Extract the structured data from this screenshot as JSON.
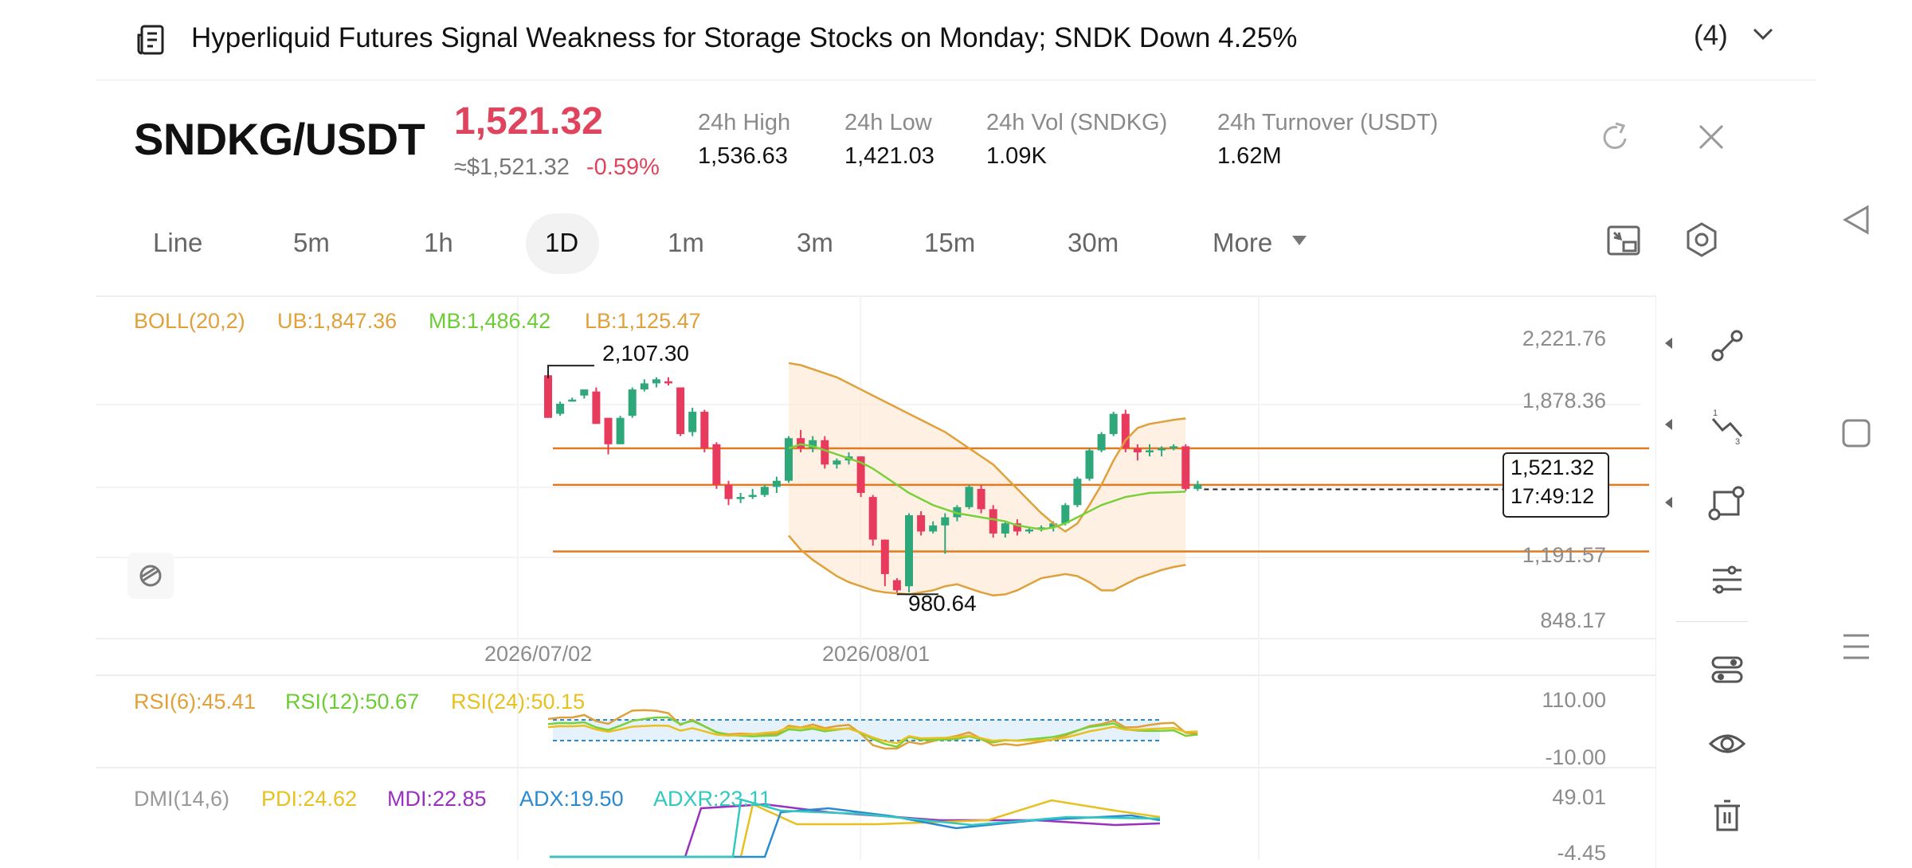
{
  "news": {
    "title": "Hyperliquid Futures Signal Weakness for Storage Stocks on Monday; SNDK Down 4.25%",
    "count": "(4)"
  },
  "header": {
    "pair": "SNDKG/USDT",
    "price": "1,521.32",
    "price_usd": "≈$1,521.32",
    "change": "-0.59%",
    "stats": [
      {
        "label": "24h   High",
        "value": "1,536.63"
      },
      {
        "label": "24h   Low",
        "value": "1,421.03"
      },
      {
        "label": "24h   Vol (SNDKG)",
        "value": "1.09K"
      },
      {
        "label": "24h   Turnover (USDT)",
        "value": "1.62M"
      }
    ]
  },
  "tabs": [
    "Line",
    "5m",
    "1h",
    "1D",
    "1m",
    "3m",
    "15m",
    "30m",
    "More"
  ],
  "selected_tab": "1D",
  "indicators": {
    "boll": {
      "name": "BOLL(20,2)",
      "ub": "UB:1,847.36",
      "mb": "MB:1,486.42",
      "lb": "LB:1,125.47"
    },
    "rsi": {
      "r6": "RSI(6):45.41",
      "r12": "RSI(12):50.67",
      "r24": "RSI(24):50.15"
    },
    "dmi": {
      "name": "DMI(14,6)",
      "pdi": "PDI:24.62",
      "mdi": "MDI:22.85",
      "adx": "ADX:19.50",
      "adxr": "ADXR:23.11"
    }
  },
  "axes": {
    "price_ticks": [
      "2,221.76",
      "1,878.36",
      "1,191.57",
      "848.17"
    ],
    "rsi_ticks": [
      "110.00",
      "-10.00"
    ],
    "dmi_ticks": [
      "49.01",
      "-4.45"
    ],
    "dates": [
      "2026/07/02",
      "2026/08/01"
    ]
  },
  "markers": {
    "high": "2,107.30",
    "low": "980.64",
    "last_price": "1,521.32",
    "countdown": "17:49:12"
  },
  "colors": {
    "up": "#2ea77a",
    "down": "#e83a5c",
    "boll_ub": "#e0a03a",
    "boll_mb": "#7ad03a",
    "hline": "#e07a20",
    "rsi6": "#e0a03a",
    "rsi12": "#7ad03a",
    "rsi24": "#e8c020",
    "pdi": "#e8c020",
    "mdi": "#9a30c0",
    "adx": "#2a8ad0",
    "adxr": "#30c8c0",
    "price_red": "#e0435d"
  },
  "chart_data": {
    "type": "candlestick",
    "candles": [
      {
        "o": 2060,
        "h": 2107.3,
        "l": 1850,
        "c": 1850
      },
      {
        "o": 1870,
        "h": 1930,
        "l": 1860,
        "c": 1920
      },
      {
        "o": 1930,
        "h": 1950,
        "l": 1930,
        "c": 1940
      },
      {
        "o": 1960,
        "h": 1990,
        "l": 1945,
        "c": 1990
      },
      {
        "o": 1980,
        "h": 2000,
        "l": 1820,
        "c": 1820
      },
      {
        "o": 1850,
        "h": 1850,
        "l": 1670,
        "c": 1720
      },
      {
        "o": 1720,
        "h": 1860,
        "l": 1720,
        "c": 1850
      },
      {
        "o": 1860,
        "h": 2000,
        "l": 1850,
        "c": 1990
      },
      {
        "o": 1990,
        "h": 2040,
        "l": 1980,
        "c": 2020
      },
      {
        "o": 2020,
        "h": 2050,
        "l": 2000,
        "c": 2040
      },
      {
        "o": 2030,
        "h": 2050,
        "l": 2010,
        "c": 2020
      },
      {
        "o": 2000,
        "h": 2000,
        "l": 1760,
        "c": 1770
      },
      {
        "o": 1780,
        "h": 1900,
        "l": 1760,
        "c": 1880
      },
      {
        "o": 1880,
        "h": 1890,
        "l": 1680,
        "c": 1700
      },
      {
        "o": 1720,
        "h": 1730,
        "l": 1500,
        "c": 1520
      },
      {
        "o": 1520,
        "h": 1540,
        "l": 1420,
        "c": 1450
      },
      {
        "o": 1450,
        "h": 1480,
        "l": 1430,
        "c": 1460
      },
      {
        "o": 1460,
        "h": 1500,
        "l": 1450,
        "c": 1470
      },
      {
        "o": 1470,
        "h": 1520,
        "l": 1460,
        "c": 1510
      },
      {
        "o": 1510,
        "h": 1560,
        "l": 1480,
        "c": 1540
      },
      {
        "o": 1540,
        "h": 1760,
        "l": 1530,
        "c": 1750
      },
      {
        "o": 1750,
        "h": 1790,
        "l": 1680,
        "c": 1700
      },
      {
        "o": 1700,
        "h": 1760,
        "l": 1680,
        "c": 1740
      },
      {
        "o": 1740,
        "h": 1760,
        "l": 1600,
        "c": 1620
      },
      {
        "o": 1620,
        "h": 1650,
        "l": 1600,
        "c": 1640
      },
      {
        "o": 1640,
        "h": 1680,
        "l": 1620,
        "c": 1660
      },
      {
        "o": 1660,
        "h": 1660,
        "l": 1460,
        "c": 1480
      },
      {
        "o": 1460,
        "h": 1470,
        "l": 1220,
        "c": 1250
      },
      {
        "o": 1250,
        "h": 1250,
        "l": 1020,
        "c": 1080
      },
      {
        "o": 1050,
        "h": 1060,
        "l": 980.64,
        "c": 1000
      },
      {
        "o": 1020,
        "h": 1380,
        "l": 990,
        "c": 1370
      },
      {
        "o": 1370,
        "h": 1390,
        "l": 1270,
        "c": 1290
      },
      {
        "o": 1290,
        "h": 1340,
        "l": 1280,
        "c": 1320
      },
      {
        "o": 1320,
        "h": 1380,
        "l": 1180,
        "c": 1360
      },
      {
        "o": 1360,
        "h": 1420,
        "l": 1340,
        "c": 1410
      },
      {
        "o": 1410,
        "h": 1520,
        "l": 1400,
        "c": 1510
      },
      {
        "o": 1500,
        "h": 1520,
        "l": 1380,
        "c": 1400
      },
      {
        "o": 1400,
        "h": 1420,
        "l": 1260,
        "c": 1280
      },
      {
        "o": 1280,
        "h": 1340,
        "l": 1260,
        "c": 1330
      },
      {
        "o": 1330,
        "h": 1350,
        "l": 1270,
        "c": 1290
      },
      {
        "o": 1290,
        "h": 1310,
        "l": 1280,
        "c": 1300
      },
      {
        "o": 1300,
        "h": 1320,
        "l": 1290,
        "c": 1310
      },
      {
        "o": 1310,
        "h": 1340,
        "l": 1290,
        "c": 1330
      },
      {
        "o": 1330,
        "h": 1430,
        "l": 1320,
        "c": 1420
      },
      {
        "o": 1420,
        "h": 1560,
        "l": 1410,
        "c": 1550
      },
      {
        "o": 1550,
        "h": 1700,
        "l": 1540,
        "c": 1690
      },
      {
        "o": 1690,
        "h": 1780,
        "l": 1680,
        "c": 1770
      },
      {
        "o": 1770,
        "h": 1880,
        "l": 1760,
        "c": 1870
      },
      {
        "o": 1870,
        "h": 1890,
        "l": 1680,
        "c": 1700
      },
      {
        "o": 1700,
        "h": 1720,
        "l": 1640,
        "c": 1680
      },
      {
        "o": 1680,
        "h": 1720,
        "l": 1660,
        "c": 1690
      },
      {
        "o": 1690,
        "h": 1710,
        "l": 1660,
        "c": 1700
      },
      {
        "o": 1700,
        "h": 1720,
        "l": 1690,
        "c": 1710
      },
      {
        "o": 1710,
        "h": 1720,
        "l": 1490,
        "c": 1500
      },
      {
        "o": 1500,
        "h": 1540,
        "l": 1490,
        "c": 1521.32
      }
    ],
    "boll_ub": [
      2120,
      2110,
      2090,
      2070,
      2050,
      2020,
      1990,
      1960,
      1930,
      1900,
      1870,
      1840,
      1810,
      1780,
      1740,
      1700,
      1660,
      1620,
      1560,
      1500,
      1440,
      1380,
      1330,
      1290,
      1330,
      1420,
      1520,
      1640,
      1740,
      1800,
      1820,
      1830,
      1840,
      1847.36
    ],
    "boll_mb": [
      1700,
      1720,
      1710,
      1690,
      1670,
      1650,
      1630,
      1600,
      1560,
      1520,
      1480,
      1450,
      1420,
      1400,
      1380,
      1370,
      1360,
      1350,
      1340,
      1320,
      1310,
      1300,
      1310,
      1330,
      1360,
      1390,
      1420,
      1440,
      1460,
      1470,
      1480,
      1482,
      1484,
      1486.42
    ],
    "boll_lb": [
      1270,
      1200,
      1150,
      1110,
      1070,
      1040,
      1020,
      1000,
      990,
      985,
      980,
      990,
      1000,
      1020,
      1030,
      1010,
      990,
      975,
      980,
      1000,
      1030,
      1060,
      1070,
      1080,
      1070,
      1040,
      1000,
      1000,
      1030,
      1060,
      1080,
      1100,
      1115,
      1125.47
    ],
    "hlines": [
      1700,
      1520,
      1191.57
    ],
    "price_range": [
      848.17,
      2221.76
    ],
    "rsi_range": [
      -10,
      110
    ],
    "dmi_range": [
      -4.45,
      49.01
    ]
  },
  "toolbar": [
    "line-tool-icon",
    "trend-tool-icon",
    "shape-tool-icon",
    "adjust-icon",
    "indicator-icon",
    "eye-icon",
    "trash-icon"
  ]
}
